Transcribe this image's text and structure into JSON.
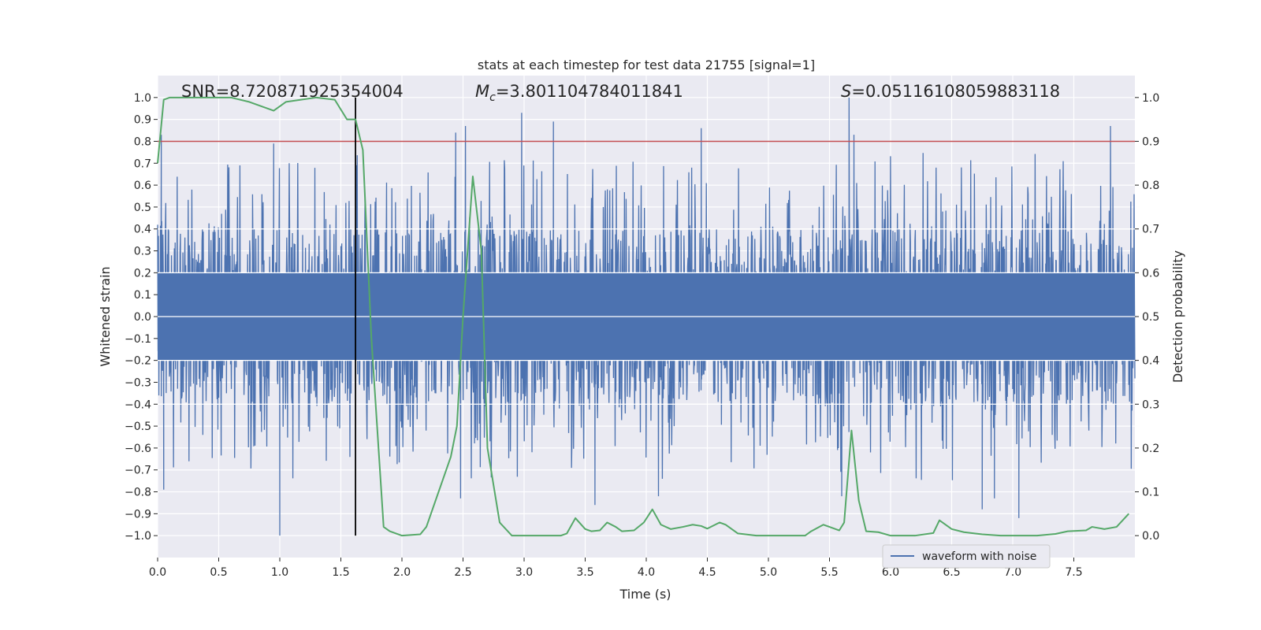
{
  "chart_data": {
    "type": "line",
    "title": "stats at each timestep for test data 21755 [signal=1]",
    "xlabel": "Time (s)",
    "ylabel_left": "Whitened strain",
    "ylabel_right": "Detection probability",
    "xlim": [
      0.0,
      8.0
    ],
    "ylim_left": [
      -1.1,
      1.1
    ],
    "ylim_right": [
      -0.05,
      1.05
    ],
    "x_ticks": [
      "0.0",
      "0.5",
      "1.0",
      "1.5",
      "2.0",
      "2.5",
      "3.0",
      "3.5",
      "4.0",
      "4.5",
      "5.0",
      "5.5",
      "6.0",
      "6.5",
      "7.0",
      "7.5"
    ],
    "y_left_ticks": [
      "-1.0",
      "-0.9",
      "-0.8",
      "-0.7",
      "-0.6",
      "-0.5",
      "-0.4",
      "-0.3",
      "-0.2",
      "-0.1",
      "0.0",
      "0.1",
      "0.2",
      "0.3",
      "0.4",
      "0.5",
      "0.6",
      "0.7",
      "0.8",
      "0.9",
      "1.0"
    ],
    "y_right_ticks": [
      "0.0",
      "0.1",
      "0.2",
      "0.3",
      "0.4",
      "0.5",
      "0.6",
      "0.7",
      "0.8",
      "0.9",
      "1.0"
    ],
    "grid": true,
    "legend_placement": "lower-right",
    "annotations": {
      "snr_prefix": "SNR=",
      "snr_value": "8.720871925354004",
      "mc_symbol": "M",
      "mc_subscript": "c",
      "mc_value": "=3.801104784011841",
      "s_symbol": "S",
      "s_value": "=0.05116108059883118"
    },
    "threshold": {
      "value": 0.9,
      "axis": "right",
      "color": "#c44e52"
    },
    "marker_line": {
      "x": 1.62,
      "y_from": -1.0,
      "y_to": 1.0,
      "color": "#000000"
    },
    "series": [
      {
        "name": "waveform with noise",
        "axis": "left",
        "color": "#4c72b0",
        "style": "noise",
        "core_amplitude": 0.4,
        "notable_peaks": [
          {
            "x": 0.03,
            "y": 0.83
          },
          {
            "x": 0.95,
            "y": 0.79
          },
          {
            "x": 2.44,
            "y": 0.84
          },
          {
            "x": 2.52,
            "y": 0.87
          },
          {
            "x": 2.98,
            "y": 0.93
          },
          {
            "x": 3.24,
            "y": 0.89
          },
          {
            "x": 4.45,
            "y": 0.86
          },
          {
            "x": 5.66,
            "y": 1.0
          },
          {
            "x": 5.7,
            "y": 0.83
          },
          {
            "x": 7.8,
            "y": 0.87
          }
        ],
        "notable_troughs": [
          {
            "x": 1.0,
            "y": -1.0
          },
          {
            "x": 0.05,
            "y": -0.79
          },
          {
            "x": 2.48,
            "y": -0.83
          },
          {
            "x": 3.58,
            "y": -0.86
          },
          {
            "x": 4.1,
            "y": -0.82
          },
          {
            "x": 5.6,
            "y": -0.82
          },
          {
            "x": 6.75,
            "y": -0.88
          },
          {
            "x": 6.85,
            "y": -0.83
          },
          {
            "x": 7.05,
            "y": -0.92
          }
        ]
      },
      {
        "axis": "right",
        "color": "#55a868",
        "x": [
          0.0,
          0.05,
          0.1,
          0.3,
          0.6,
          0.75,
          0.95,
          1.05,
          1.3,
          1.45,
          1.55,
          1.62,
          1.68,
          1.75,
          1.85,
          1.9,
          2.0,
          2.15,
          2.2,
          2.3,
          2.4,
          2.45,
          2.5,
          2.58,
          2.65,
          2.7,
          2.8,
          2.9,
          3.1,
          3.3,
          3.35,
          3.42,
          3.5,
          3.55,
          3.62,
          3.68,
          3.75,
          3.8,
          3.9,
          3.98,
          4.05,
          4.12,
          4.2,
          4.3,
          4.38,
          4.45,
          4.5,
          4.6,
          4.65,
          4.75,
          4.9,
          5.1,
          5.3,
          5.35,
          5.45,
          5.5,
          5.58,
          5.62,
          5.68,
          5.74,
          5.8,
          5.9,
          6.0,
          6.2,
          6.35,
          6.4,
          6.5,
          6.6,
          6.75,
          6.9,
          7.05,
          7.2,
          7.35,
          7.45,
          7.6,
          7.65,
          7.75,
          7.85,
          7.95
        ],
        "y": [
          0.85,
          0.995,
          1.0,
          1.0,
          1.0,
          0.99,
          0.97,
          0.99,
          1.0,
          0.995,
          0.95,
          0.95,
          0.88,
          0.45,
          0.02,
          0.01,
          0.0,
          0.003,
          0.02,
          0.1,
          0.18,
          0.25,
          0.5,
          0.82,
          0.65,
          0.2,
          0.03,
          0.0,
          0.0,
          0.0,
          0.005,
          0.04,
          0.015,
          0.01,
          0.012,
          0.03,
          0.02,
          0.01,
          0.012,
          0.03,
          0.06,
          0.025,
          0.015,
          0.02,
          0.025,
          0.022,
          0.016,
          0.03,
          0.025,
          0.005,
          0.0,
          0.0,
          0.0,
          0.01,
          0.025,
          0.02,
          0.012,
          0.03,
          0.24,
          0.08,
          0.01,
          0.008,
          0.0,
          0.0,
          0.006,
          0.035,
          0.015,
          0.008,
          0.003,
          0.0,
          0.0,
          0.0,
          0.004,
          0.01,
          0.012,
          0.02,
          0.015,
          0.02,
          0.05
        ]
      }
    ]
  }
}
